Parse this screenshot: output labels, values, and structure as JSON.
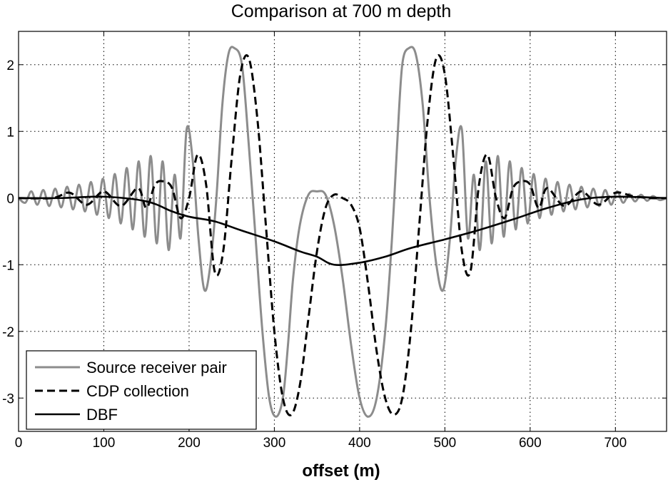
{
  "chart_data": {
    "type": "line",
    "title": "Comparison at 700 m depth",
    "xlabel": "offset (m)",
    "ylabel": "",
    "xlim": [
      0,
      760
    ],
    "ylim": [
      -3.5,
      2.5
    ],
    "x_ticks": [
      0,
      100,
      200,
      300,
      400,
      500,
      600,
      700
    ],
    "y_ticks": [
      -3,
      -2,
      -1,
      0,
      1,
      2
    ],
    "x_tick_labels": [
      "0",
      "100",
      "200",
      "300",
      "400",
      "500",
      "600",
      "700"
    ],
    "y_tick_labels": [
      "-3",
      "-2",
      "-1",
      "0",
      "1",
      "2"
    ],
    "grid": true,
    "legend_position": "bottom-left",
    "series": [
      {
        "name": "Source receiver pair",
        "color": "#8c8c8c",
        "style": "solid",
        "x": [
          0,
          8,
          15,
          22,
          29,
          36,
          43,
          50,
          57,
          64,
          71,
          78,
          85,
          92,
          99,
          106,
          113,
          120,
          127,
          134,
          141,
          148,
          155,
          162,
          169,
          176,
          183,
          190,
          197,
          204,
          211,
          218,
          225,
          232,
          239,
          246,
          253,
          262,
          270,
          278,
          286,
          294,
          302,
          310,
          316,
          322,
          330,
          340,
          350,
          360,
          370,
          380,
          390,
          400,
          410,
          420,
          430,
          438,
          444,
          450,
          458,
          466,
          474,
          482,
          490,
          498,
          506,
          513,
          520,
          527,
          534,
          541,
          548,
          555,
          562,
          569,
          576,
          583,
          590,
          597,
          604,
          611,
          618,
          625,
          632,
          639,
          646,
          653,
          660,
          667,
          674,
          681,
          688,
          695,
          702,
          709,
          716,
          723,
          730,
          737,
          744,
          752,
          760
        ],
        "y": [
          0.0,
          -0.07,
          0.1,
          -0.1,
          0.12,
          -0.12,
          0.14,
          -0.14,
          0.17,
          -0.17,
          0.2,
          -0.2,
          0.24,
          -0.25,
          0.29,
          -0.3,
          0.36,
          -0.38,
          0.45,
          -0.47,
          0.55,
          -0.58,
          0.63,
          -0.68,
          0.55,
          -0.78,
          0.35,
          -0.6,
          1.02,
          0.6,
          -0.6,
          -1.38,
          -1.0,
          0.0,
          1.4,
          2.15,
          2.25,
          2.0,
          0.8,
          -0.6,
          -2.0,
          -3.0,
          -3.28,
          -3.0,
          -2.2,
          -1.2,
          -0.4,
          0.05,
          0.1,
          0.05,
          -0.4,
          -1.2,
          -2.2,
          -3.0,
          -3.28,
          -3.0,
          -2.0,
          -0.6,
          0.8,
          2.0,
          2.25,
          2.15,
          1.4,
          0.0,
          -1.0,
          -1.38,
          -0.6,
          0.6,
          1.02,
          -0.6,
          0.35,
          -0.78,
          0.55,
          -0.68,
          0.63,
          -0.58,
          0.55,
          -0.47,
          0.45,
          -0.38,
          0.36,
          -0.3,
          0.29,
          -0.25,
          0.24,
          -0.2,
          0.2,
          -0.17,
          0.17,
          -0.14,
          0.14,
          -0.12,
          0.12,
          -0.1,
          0.1,
          -0.07,
          0.06,
          -0.05,
          0.05,
          -0.04,
          0.03,
          -0.03,
          0.0
        ]
      },
      {
        "name": "CDP collection",
        "color": "#000000",
        "style": "dashed",
        "x": [
          0,
          40,
          60,
          80,
          100,
          120,
          140,
          150,
          160,
          170,
          180,
          190,
          200,
          210,
          220,
          230,
          240,
          250,
          260,
          270,
          280,
          290,
          300,
          310,
          320,
          330,
          340,
          350,
          360,
          370,
          380,
          390,
          400,
          410,
          420,
          430,
          440,
          450,
          460,
          470,
          480,
          490,
          500,
          510,
          520,
          530,
          540,
          550,
          560,
          570,
          580,
          590,
          600,
          610,
          620,
          640,
          660,
          680,
          700,
          720,
          740,
          760
        ],
        "y": [
          0.0,
          0.0,
          0.08,
          -0.1,
          0.1,
          -0.12,
          0.15,
          -0.15,
          0.2,
          0.25,
          0.15,
          -0.3,
          0.0,
          0.65,
          0.2,
          -1.1,
          -0.8,
          0.6,
          1.85,
          2.1,
          1.2,
          -0.4,
          -2.0,
          -3.0,
          -3.25,
          -2.8,
          -1.8,
          -0.8,
          -0.15,
          0.05,
          0.0,
          -0.1,
          -0.45,
          -1.3,
          -2.3,
          -3.0,
          -3.25,
          -3.0,
          -2.0,
          -0.4,
          1.2,
          2.1,
          1.85,
          0.6,
          -0.8,
          -1.1,
          0.2,
          0.65,
          0.0,
          -0.3,
          0.15,
          0.25,
          0.2,
          -0.15,
          0.15,
          -0.12,
          0.1,
          -0.1,
          0.08,
          0.03,
          0.0,
          0.0
        ]
      },
      {
        "name": "DBF",
        "color": "#000000",
        "style": "solid",
        "x": [
          0,
          50,
          100,
          150,
          180,
          200,
          230,
          260,
          300,
          330,
          350,
          370,
          400,
          430,
          460,
          500,
          540,
          580,
          620,
          660,
          700,
          760
        ],
        "y": [
          0.0,
          0.0,
          0.02,
          -0.05,
          -0.2,
          -0.28,
          -0.35,
          -0.48,
          -0.65,
          -0.8,
          -0.88,
          -1.0,
          -0.97,
          -0.88,
          -0.75,
          -0.62,
          -0.48,
          -0.32,
          -0.15,
          -0.02,
          0.02,
          0.0
        ]
      }
    ]
  }
}
